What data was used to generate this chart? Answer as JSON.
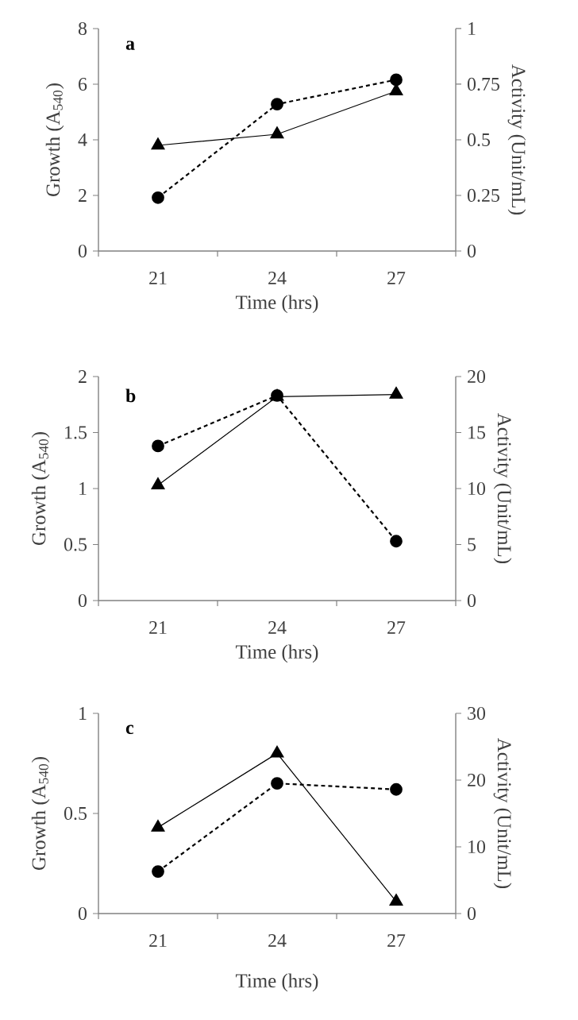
{
  "chart_data": [
    {
      "type": "line",
      "categories": [
        "21",
        "24",
        "27"
      ],
      "xlabel": "Time (hrs)",
      "ylabel": "Growth (A$_{540}$)",
      "y2label": "Activity (Unit/mL)",
      "annotations": [
        "a"
      ],
      "ylim": [
        0,
        8
      ],
      "yticks": [
        0,
        2,
        4,
        6,
        8
      ],
      "y2lim": [
        0,
        1
      ],
      "y2ticks": [
        0,
        0.25,
        0.5,
        0.75,
        1
      ],
      "series": [
        {
          "color": "#000000",
          "marker": "triangle",
          "line_style": "solid",
          "values": [
            3.8,
            4.2,
            5.75
          ]
        },
        {
          "color": "#000000",
          "marker": "circle",
          "line_style": "dashed",
          "axis": "y2",
          "values": [
            0.24,
            0.66,
            0.77
          ]
        }
      ]
    },
    {
      "type": "line",
      "categories": [
        "21",
        "24",
        "27"
      ],
      "xlabel": "Time (hrs)",
      "ylabel": "Growth (A$_{540}$)",
      "y2label": "Activity (Unit/mL)",
      "annotations": [
        "b"
      ],
      "ylim": [
        0,
        2
      ],
      "yticks": [
        0,
        0.5,
        1,
        1.5,
        2
      ],
      "y2lim": [
        0,
        20
      ],
      "y2ticks": [
        0,
        5,
        10,
        15,
        20
      ],
      "series": [
        {
          "color": "#000000",
          "marker": "triangle",
          "line_style": "solid",
          "values": [
            1.03,
            1.82,
            1.84
          ]
        },
        {
          "color": "#000000",
          "marker": "circle",
          "line_style": "dashed",
          "axis": "y2",
          "values": [
            13.8,
            18.3,
            5.3
          ]
        }
      ]
    },
    {
      "type": "line",
      "categories": [
        "21",
        "24",
        "27"
      ],
      "xlabel": "Time (hrs)",
      "ylabel": "Growth (A$_{540}$)",
      "y2label": "Activity (Unit/mL)",
      "annotations": [
        "c"
      ],
      "ylim": [
        0,
        1
      ],
      "yticks": [
        0,
        0.5,
        1
      ],
      "y2lim": [
        0,
        30
      ],
      "y2ticks": [
        0,
        10,
        20,
        30
      ],
      "series": [
        {
          "color": "#000000",
          "marker": "triangle",
          "line_style": "solid",
          "values": [
            0.43,
            0.8,
            0.06
          ]
        },
        {
          "color": "#000000",
          "marker": "circle",
          "line_style": "dashed",
          "axis": "y2",
          "values": [
            6.3,
            19.5,
            18.6
          ]
        }
      ]
    }
  ]
}
